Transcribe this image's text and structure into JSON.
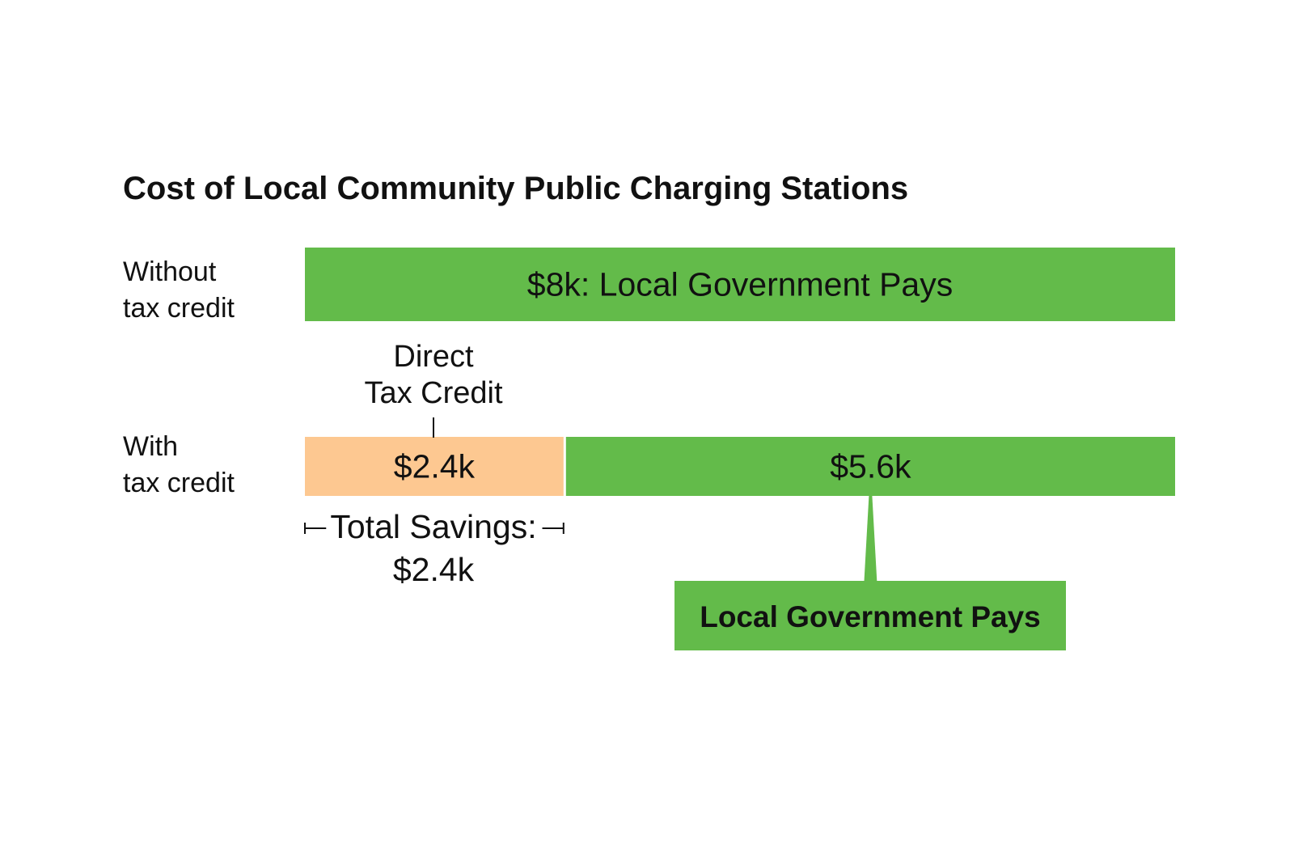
{
  "chart_data": {
    "type": "bar",
    "orientation": "horizontal",
    "stacked": true,
    "title": "Cost of Local Community Public Charging Stations",
    "unit": "thousand USD",
    "total": 8,
    "rows": [
      {
        "label_lines": [
          "Without",
          "tax credit"
        ],
        "segments": [
          {
            "value": 8,
            "label": "$8k: Local Government Pays",
            "color": "#63bb4a"
          }
        ]
      },
      {
        "label_lines": [
          "With",
          "tax credit"
        ],
        "segments": [
          {
            "value": 2.4,
            "label": "$2.4k",
            "color": "#fdc891"
          },
          {
            "value": 5.6,
            "label": "$5.6k",
            "color": "#63bb4a"
          }
        ]
      }
    ],
    "annotations": {
      "direct_credit_lines": [
        "Direct",
        "Tax Credit"
      ],
      "savings_lines": [
        "Total Savings:",
        "$2.4k"
      ],
      "callout": "Local Government Pays"
    },
    "colors": {
      "green": "#63bb4a",
      "orange": "#fdc891",
      "text": "#111111"
    },
    "grid": false,
    "legend": "none"
  }
}
